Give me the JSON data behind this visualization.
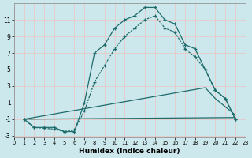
{
  "xlabel": "Humidex (Indice chaleur)",
  "xlim": [
    0,
    23
  ],
  "ylim": [
    -3.2,
    13
  ],
  "yticks": [
    -3,
    -1,
    1,
    3,
    5,
    7,
    9,
    11
  ],
  "xticks": [
    0,
    1,
    2,
    3,
    4,
    5,
    6,
    7,
    8,
    9,
    10,
    11,
    12,
    13,
    14,
    15,
    16,
    17,
    18,
    19,
    20,
    21,
    22,
    23
  ],
  "bg_color": "#cce8ec",
  "grid_color": "#e8c8c8",
  "line_color": "#1e6b6b",
  "curve1_x": [
    1,
    2,
    3,
    4,
    5,
    6,
    7,
    8,
    9,
    10,
    11,
    12,
    13,
    14,
    15,
    16,
    17,
    18,
    19,
    20,
    21,
    22
  ],
  "curve1_y": [
    -1,
    -2,
    -2,
    -2,
    -2.5,
    -2.5,
    1,
    7,
    8,
    10,
    11,
    11.5,
    12.5,
    12.5,
    11,
    10.5,
    8,
    7.5,
    5,
    2.5,
    1.5,
    -1
  ],
  "curve2_x": [
    1,
    2,
    3,
    4,
    5,
    6,
    7,
    8,
    9,
    10,
    11,
    12,
    13,
    14,
    15,
    16,
    17,
    18,
    19,
    20,
    21,
    22
  ],
  "curve2_y": [
    -1,
    -2,
    -2.1,
    -2.2,
    -2.5,
    -2.3,
    0,
    3.5,
    5.5,
    7.5,
    9,
    10,
    11,
    11.5,
    10,
    9.5,
    7.5,
    6.5,
    5,
    2.5,
    1.5,
    -1
  ],
  "curve3_x": [
    1,
    22
  ],
  "curve3_y": [
    -1,
    -0.8
  ],
  "curve4_x": [
    1,
    19,
    20,
    22
  ],
  "curve4_y": [
    -1,
    2.8,
    1.5,
    -0.5
  ],
  "figsize": [
    3.2,
    2.0
  ],
  "dpi": 100
}
